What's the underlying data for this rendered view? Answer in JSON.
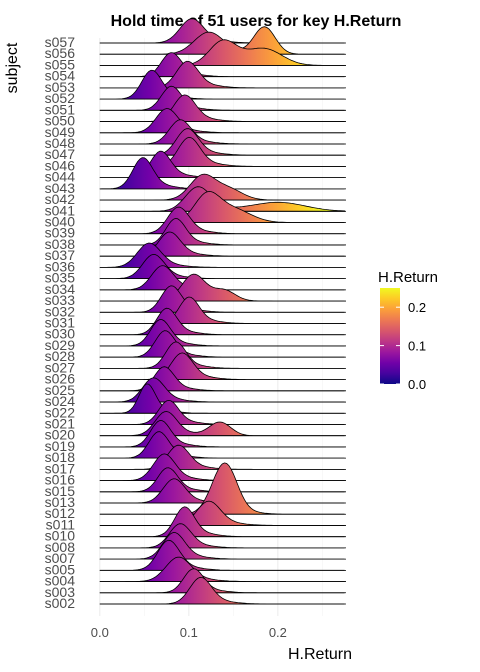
{
  "chart_data": {
    "type": "ridgeline",
    "title": "Hold time of 51 users for key H.Return",
    "xlabel": "H.Return",
    "ylabel": "subject",
    "xlim": [
      -0.02,
      0.29
    ],
    "x_ticks": [
      0.0,
      0.1,
      0.2
    ],
    "x_tick_labels": [
      "0.0",
      "0.1",
      "0.2"
    ],
    "legend": {
      "title": "H.Return",
      "position": "right",
      "ticks": [
        "0.0",
        "0.1",
        "0.2"
      ],
      "tick_values": [
        0.0,
        0.1,
        0.2
      ],
      "range": [
        0.0,
        0.25
      ]
    },
    "colormap": "plasma",
    "subjects": [
      "s002",
      "s003",
      "s004",
      "s005",
      "s007",
      "s008",
      "s010",
      "s011",
      "s012",
      "s013",
      "s015",
      "s016",
      "s017",
      "s018",
      "s019",
      "s020",
      "s021",
      "s022",
      "s024",
      "s025",
      "s026",
      "s027",
      "s028",
      "s029",
      "s030",
      "s031",
      "s032",
      "s033",
      "s034",
      "s035",
      "s036",
      "s037",
      "s038",
      "s039",
      "s040",
      "s041",
      "s042",
      "s043",
      "s044",
      "s046",
      "s047",
      "s048",
      "s049",
      "s050",
      "s051",
      "s052",
      "s053",
      "s054",
      "s055",
      "s056",
      "s057"
    ],
    "modes": [
      0.113,
      0.105,
      0.088,
      0.077,
      0.083,
      0.09,
      0.095,
      0.122,
      0.135,
      0.083,
      0.076,
      0.072,
      0.088,
      0.066,
      0.068,
      0.074,
      0.077,
      0.053,
      0.06,
      0.072,
      0.092,
      0.085,
      0.073,
      0.068,
      0.075,
      0.1,
      0.08,
      0.105,
      0.07,
      0.06,
      0.055,
      0.078,
      0.085,
      0.088,
      0.12,
      0.11,
      0.115,
      0.048,
      0.068,
      0.1,
      0.098,
      0.09,
      0.075,
      0.095,
      0.08,
      0.058,
      0.098,
      0.08,
      0.138,
      0.122,
      0.103
    ],
    "peak_heights": [
      0.55,
      0.5,
      0.5,
      0.62,
      0.55,
      0.5,
      0.62,
      0.5,
      0.62,
      0.5,
      0.5,
      0.55,
      0.5,
      0.55,
      0.55,
      0.5,
      0.5,
      0.62,
      0.5,
      0.5,
      0.55,
      0.55,
      0.55,
      0.55,
      0.55,
      0.55,
      0.55,
      0.55,
      0.5,
      0.5,
      0.5,
      0.5,
      0.55,
      0.55,
      0.55,
      0.5,
      0.5,
      0.65,
      0.55,
      0.6,
      0.55,
      0.5,
      0.5,
      0.55,
      0.5,
      0.6,
      0.55,
      0.5,
      0.5,
      0.45,
      0.5
    ],
    "spreads": [
      0.012,
      0.011,
      0.014,
      0.012,
      0.012,
      0.012,
      0.011,
      0.013,
      0.013,
      0.012,
      0.011,
      0.012,
      0.012,
      0.011,
      0.011,
      0.012,
      0.011,
      0.009,
      0.012,
      0.011,
      0.012,
      0.011,
      0.011,
      0.011,
      0.011,
      0.011,
      0.011,
      0.013,
      0.012,
      0.012,
      0.013,
      0.012,
      0.011,
      0.012,
      0.014,
      0.014,
      0.014,
      0.011,
      0.011,
      0.012,
      0.012,
      0.012,
      0.012,
      0.012,
      0.011,
      0.011,
      0.012,
      0.011,
      0.015,
      0.016,
      0.013
    ],
    "secondary_bumps": {
      "s012": [
        0.145,
        0.55,
        0.012
      ],
      "s020": [
        0.135,
        0.3,
        0.012
      ],
      "s041": [
        0.2,
        0.2,
        0.03
      ],
      "s055": [
        0.185,
        0.35,
        0.02
      ],
      "s056": [
        0.185,
        0.6,
        0.012
      ],
      "s033": [
        0.14,
        0.2,
        0.012
      ],
      "s040": [
        0.15,
        0.25,
        0.02
      ],
      "s042": [
        0.145,
        0.2,
        0.015
      ]
    }
  }
}
